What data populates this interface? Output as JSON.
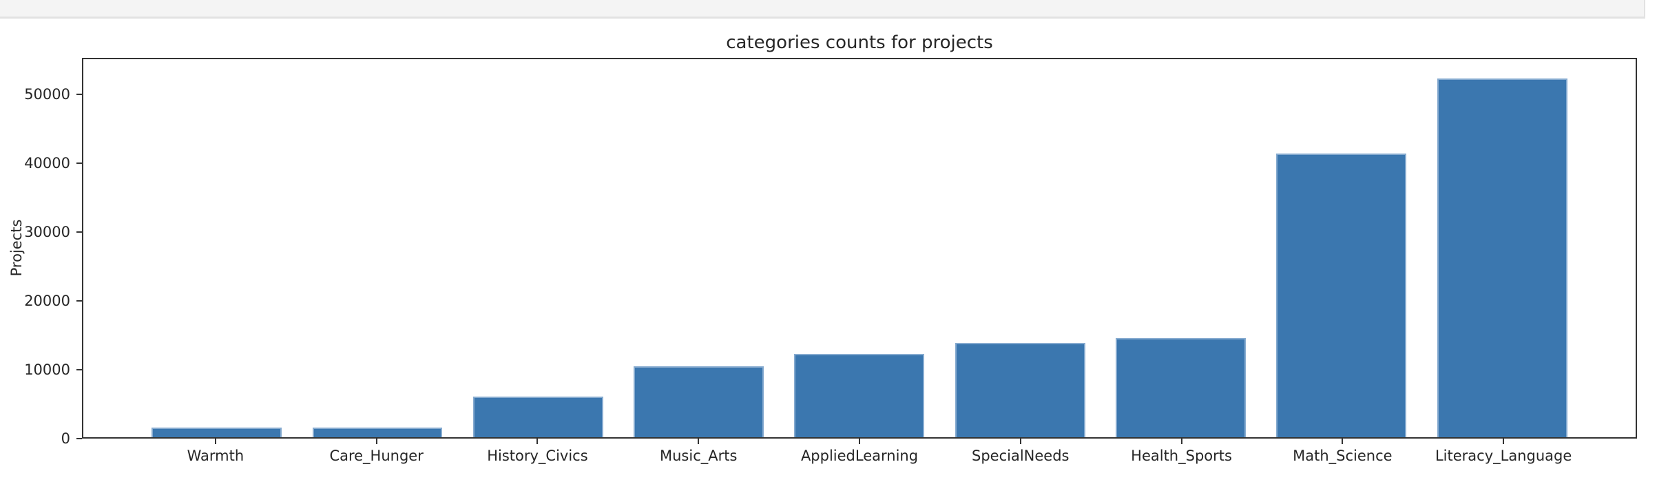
{
  "chart_data": {
    "type": "bar",
    "title": "categories counts for projects",
    "xlabel": "",
    "ylabel": "Projects",
    "categories": [
      "Warmth",
      "Care_Hunger",
      "History_Civics",
      "Music_Arts",
      "AppliedLearning",
      "SpecialNeeds",
      "Health_Sports",
      "Math_Science",
      "Literacy_Language"
    ],
    "values": [
      1400,
      1400,
      5900,
      10400,
      12200,
      13800,
      14500,
      41500,
      52500
    ],
    "yticks": [
      0,
      10000,
      20000,
      30000,
      40000,
      50000
    ],
    "ylim": [
      0,
      55300
    ],
    "grid": false,
    "legend": false,
    "bar_color": "#3b77af"
  },
  "colors": {
    "bar": "#3b77af",
    "bar_edge": "#86abd0",
    "spine": "#333333",
    "text": "#262626",
    "top_strip_background": "#f4f4f4",
    "top_strip_border": "#e2e2e2",
    "figure_background": "#ffffff"
  }
}
